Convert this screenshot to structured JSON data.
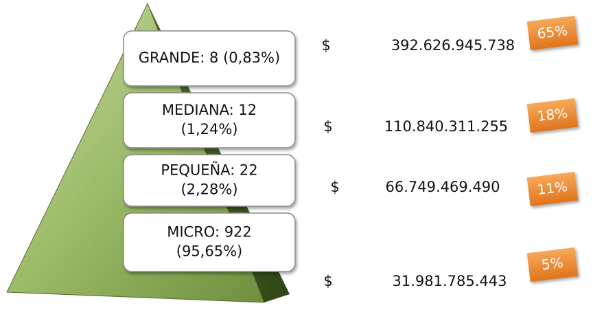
{
  "levels": [
    {
      "label": [
        "GRANDE: 8  (0,83%)"
      ],
      "currency": "$",
      "amount": "392.626.945.738",
      "percent": "65%"
    },
    {
      "label": [
        "MEDIANA:  12",
        "(1,24%)"
      ],
      "currency": "$",
      "amount": "110.840.311.255",
      "percent": "18%"
    },
    {
      "label": [
        "PEQUEÑA: 22",
        "(2,28%)"
      ],
      "currency": "$",
      "amount": "66.749.469.490",
      "percent": "11%"
    },
    {
      "label": [
        "MICRO: 922",
        "(95,65%)"
      ],
      "currency": "$",
      "amount": "31.981.785.443",
      "percent": "5%"
    }
  ]
}
